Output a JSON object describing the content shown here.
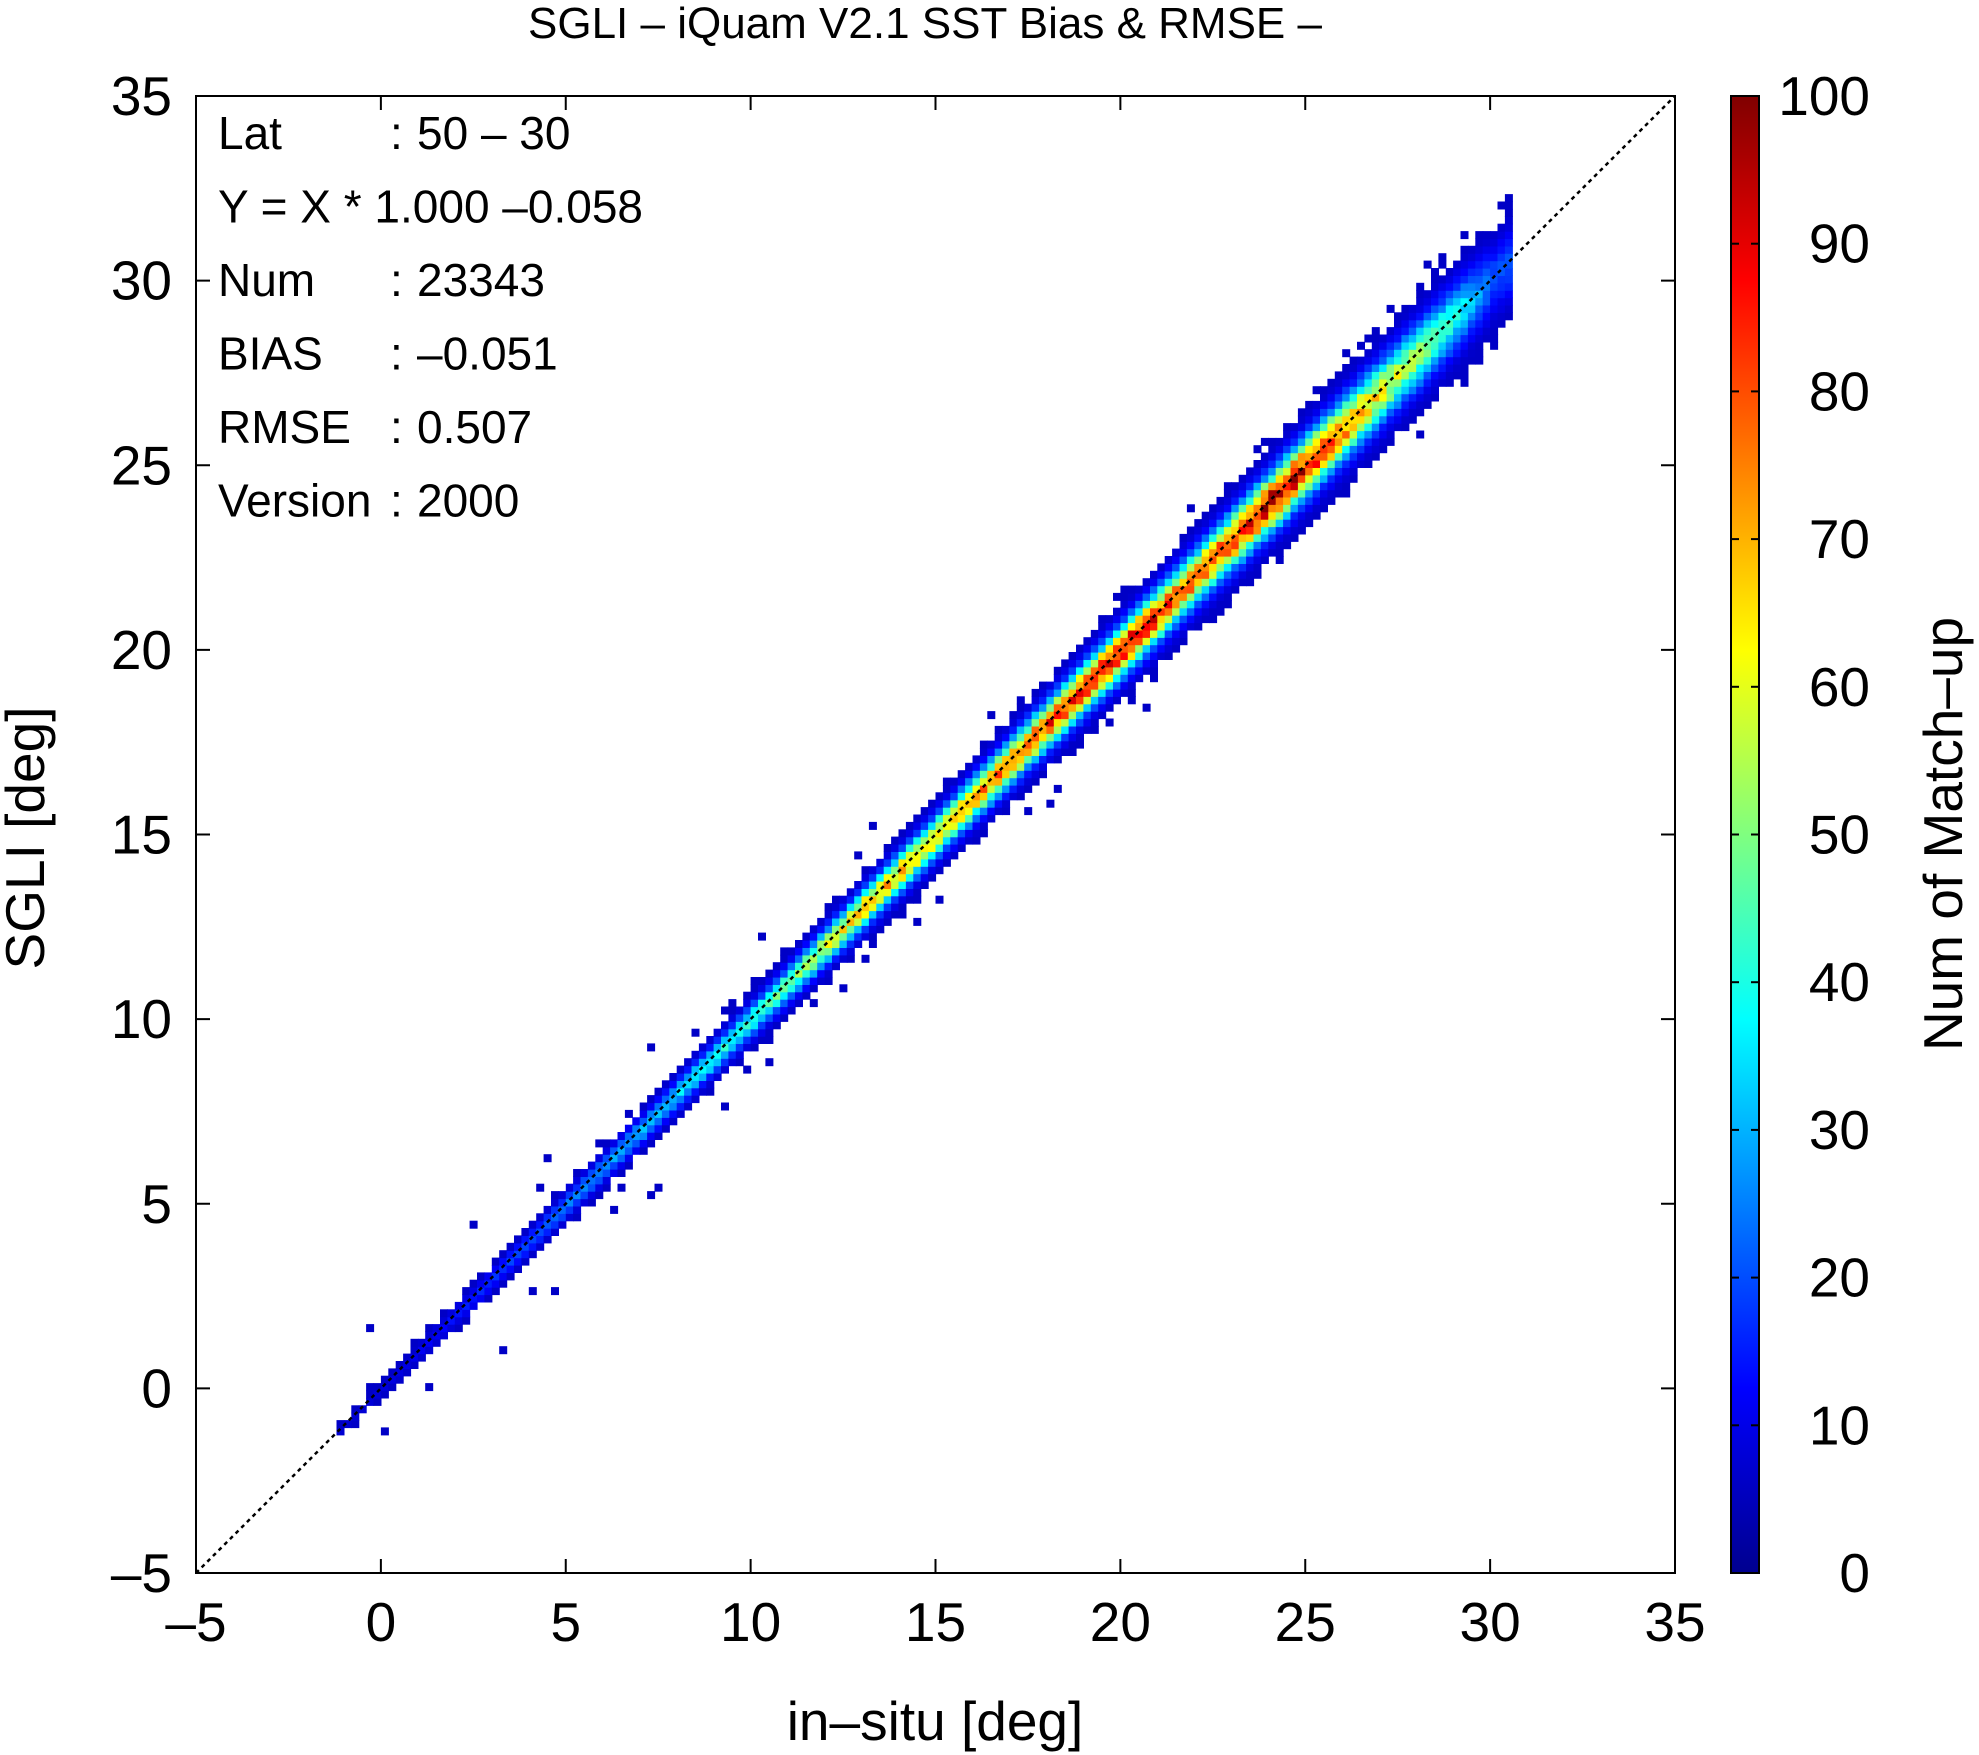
{
  "chart_data": {
    "type": "heatmap",
    "title": "SGLI – iQuam V2.1 SST Bias & RMSE  –",
    "xlabel": "in–situ [deg]",
    "ylabel": "SGLI [deg]",
    "xlim": [
      -5,
      35
    ],
    "ylim": [
      -5,
      35
    ],
    "x_ticks": [
      "–5",
      "0",
      "5",
      "10",
      "15",
      "20",
      "25",
      "30",
      "35"
    ],
    "y_ticks": [
      "–5",
      "0",
      "5",
      "10",
      "15",
      "20",
      "25",
      "30",
      "35"
    ],
    "x_tick_values": [
      -5,
      0,
      5,
      10,
      15,
      20,
      25,
      30,
      35
    ],
    "y_tick_values": [
      -5,
      0,
      5,
      10,
      15,
      20,
      25,
      30,
      35
    ],
    "grid": false,
    "reference_line": {
      "style": "dotted",
      "slope": 1,
      "intercept": 0
    },
    "colorbar": {
      "label": "Num of Match–up",
      "min": 0,
      "max": 100,
      "ticks": [
        "0",
        "10",
        "20",
        "30",
        "40",
        "50",
        "60",
        "70",
        "80",
        "90",
        "100"
      ],
      "tick_values": [
        0,
        10,
        20,
        30,
        40,
        50,
        60,
        70,
        80,
        90,
        100
      ],
      "colormap": "jet"
    },
    "stats": [
      {
        "label": "Lat",
        "sep": ":",
        "value": "50 – 30"
      },
      {
        "label": "Y = X * 1.000 –0.058",
        "sep": "",
        "value": ""
      },
      {
        "label": "Num",
        "sep": ":",
        "value": "23343"
      },
      {
        "label": "BIAS",
        "sep": ":",
        "value": "–0.051"
      },
      {
        "label": "RMSE",
        "sep": ":",
        "value": "0.507"
      },
      {
        "label": "Version",
        "sep": ":",
        "value": "2000"
      }
    ],
    "density_ridge": [
      {
        "x": -1,
        "count": 2
      },
      {
        "x": 0,
        "count": 3
      },
      {
        "x": 1,
        "count": 5
      },
      {
        "x": 2,
        "count": 8
      },
      {
        "x": 3,
        "count": 12
      },
      {
        "x": 4,
        "count": 16
      },
      {
        "x": 5,
        "count": 20
      },
      {
        "x": 6,
        "count": 22
      },
      {
        "x": 7,
        "count": 26
      },
      {
        "x": 8,
        "count": 30
      },
      {
        "x": 9,
        "count": 34
      },
      {
        "x": 10,
        "count": 38
      },
      {
        "x": 11,
        "count": 45
      },
      {
        "x": 12,
        "count": 55
      },
      {
        "x": 13,
        "count": 65
      },
      {
        "x": 14,
        "count": 65
      },
      {
        "x": 15,
        "count": 62
      },
      {
        "x": 16,
        "count": 68
      },
      {
        "x": 17,
        "count": 75
      },
      {
        "x": 18,
        "count": 80
      },
      {
        "x": 19,
        "count": 85
      },
      {
        "x": 20,
        "count": 90
      },
      {
        "x": 21,
        "count": 80
      },
      {
        "x": 22,
        "count": 75
      },
      {
        "x": 23,
        "count": 82
      },
      {
        "x": 24,
        "count": 92
      },
      {
        "x": 25,
        "count": 88
      },
      {
        "x": 26,
        "count": 72
      },
      {
        "x": 27,
        "count": 58
      },
      {
        "x": 28,
        "count": 48
      },
      {
        "x": 29,
        "count": 35
      },
      {
        "x": 30,
        "count": 15
      }
    ]
  }
}
